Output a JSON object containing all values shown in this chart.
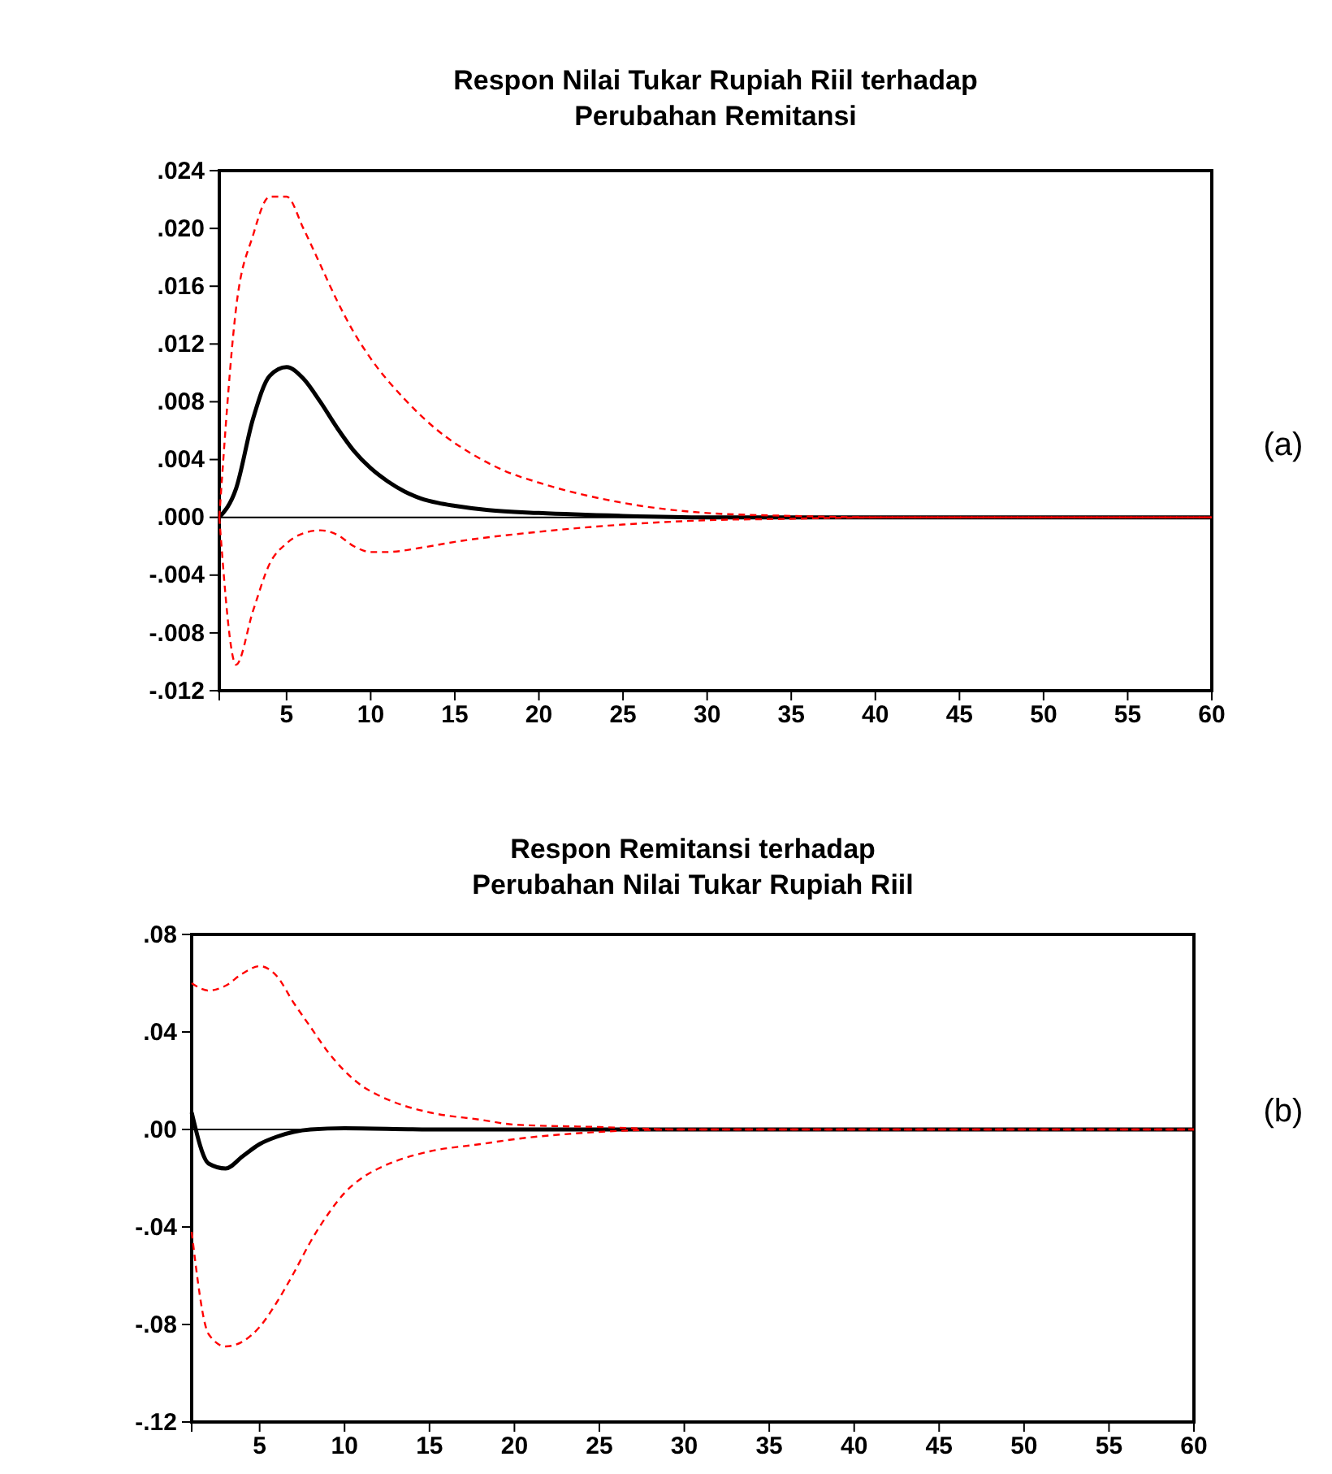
{
  "chart_data": [
    {
      "type": "line",
      "title": "Respon Nilai Tukar Rupiah Riil terhadap\nPerubahan Remitansi",
      "xlim": [
        1,
        60
      ],
      "xticks": [
        5,
        10,
        15,
        20,
        25,
        30,
        35,
        40,
        45,
        50,
        55,
        60
      ],
      "ylim": [
        -0.012,
        0.024
      ],
      "yticks": [
        {
          "value": -0.012,
          "label": "-.012"
        },
        {
          "value": -0.008,
          "label": "-.008"
        },
        {
          "value": -0.004,
          "label": "-.004"
        },
        {
          "value": 0,
          "label": ".000"
        },
        {
          "value": 0.004,
          "label": ".004"
        },
        {
          "value": 0.008,
          "label": ".008"
        },
        {
          "value": 0.012,
          "label": ".012"
        },
        {
          "value": 0.016,
          "label": ".016"
        },
        {
          "value": 0.02,
          "label": ".020"
        },
        {
          "value": 0.024,
          "label": ".024"
        }
      ],
      "ref_lines": [
        {
          "axis": "y",
          "value": 0,
          "color": "#000000"
        }
      ],
      "annotations": [
        "(a)"
      ],
      "series": [
        {
          "color": "#000000",
          "line_style": "solid",
          "x": [
            1,
            2,
            3,
            4,
            5,
            6,
            7,
            8,
            9,
            10,
            11,
            12,
            13,
            14,
            15,
            17,
            20,
            25,
            30,
            60
          ],
          "values": [
            0,
            0.002,
            0.0068,
            0.0098,
            0.0104,
            0.0096,
            0.008,
            0.0062,
            0.0046,
            0.0034,
            0.0025,
            0.0018,
            0.0013,
            0.001,
            0.0008,
            0.0005,
            0.0003,
            0.0001,
            0,
            0
          ]
        },
        {
          "color": "#ff0000",
          "line_style": "dashed",
          "x": [
            1,
            2,
            3,
            4,
            5,
            6,
            7,
            8,
            9,
            10,
            12,
            14,
            16,
            18,
            20,
            25,
            30,
            35,
            40,
            60
          ],
          "values": [
            0,
            0.0145,
            0.0195,
            0.0222,
            0.0222,
            0.02,
            0.0175,
            0.015,
            0.0128,
            0.011,
            0.0082,
            0.006,
            0.0044,
            0.0032,
            0.0024,
            0.001,
            0.0003,
            0.0001,
            0,
            0
          ]
        },
        {
          "color": "#ff0000",
          "line_style": "dashed",
          "x": [
            1,
            2,
            3,
            4,
            5,
            6,
            7,
            8,
            9,
            10,
            11,
            13,
            15,
            20,
            25,
            30,
            35,
            40,
            60
          ],
          "values": [
            0,
            -0.0102,
            -0.0065,
            -0.0032,
            -0.0018,
            -0.0011,
            -0.0009,
            -0.0012,
            -0.002,
            -0.0024,
            -0.0024,
            -0.0021,
            -0.0017,
            -0.001,
            -0.0005,
            -0.0002,
            -0.0001,
            0,
            0
          ]
        }
      ]
    },
    {
      "type": "line",
      "title": "Respon Remitansi terhadap\nPerubahan Nilai Tukar Rupiah Riil",
      "xlim": [
        1,
        60
      ],
      "xticks": [
        5,
        10,
        15,
        20,
        25,
        30,
        35,
        40,
        45,
        50,
        55,
        60
      ],
      "ylim": [
        -0.12,
        0.08
      ],
      "yticks": [
        {
          "value": -0.12,
          "label": "-.12"
        },
        {
          "value": -0.08,
          "label": "-.08"
        },
        {
          "value": -0.04,
          "label": "-.04"
        },
        {
          "value": 0,
          "label": ".00"
        },
        {
          "value": 0.04,
          "label": ".04"
        },
        {
          "value": 0.08,
          "label": ".08"
        }
      ],
      "ref_lines": [
        {
          "axis": "y",
          "value": 0,
          "color": "#000000"
        }
      ],
      "annotations": [
        "(b)"
      ],
      "series": [
        {
          "color": "#000000",
          "line_style": "solid",
          "x": [
            1,
            2,
            3,
            4,
            5,
            6,
            7,
            8,
            10,
            15,
            60
          ],
          "values": [
            0.007,
            -0.014,
            -0.016,
            -0.011,
            -0.006,
            -0.003,
            -0.001,
            0,
            0.0005,
            0,
            0
          ]
        },
        {
          "color": "#ff0000",
          "line_style": "dashed",
          "x": [
            1,
            2,
            3,
            4,
            5,
            6,
            7,
            8,
            9,
            10,
            11,
            12,
            13,
            15,
            18,
            20,
            25,
            30,
            60
          ],
          "values": [
            0.06,
            0.057,
            0.059,
            0.064,
            0.067,
            0.063,
            0.052,
            0.042,
            0.032,
            0.024,
            0.018,
            0.014,
            0.011,
            0.007,
            0.004,
            0.002,
            0.001,
            0,
            0
          ]
        },
        {
          "color": "#ff0000",
          "line_style": "dashed",
          "x": [
            1,
            2,
            3,
            4,
            5,
            6,
            7,
            8,
            9,
            10,
            11,
            12,
            13,
            15,
            18,
            20,
            25,
            30,
            60
          ],
          "values": [
            -0.042,
            -0.084,
            -0.089,
            -0.087,
            -0.081,
            -0.071,
            -0.059,
            -0.046,
            -0.035,
            -0.026,
            -0.02,
            -0.016,
            -0.013,
            -0.009,
            -0.006,
            -0.004,
            -0.001,
            0,
            0
          ]
        }
      ]
    }
  ]
}
